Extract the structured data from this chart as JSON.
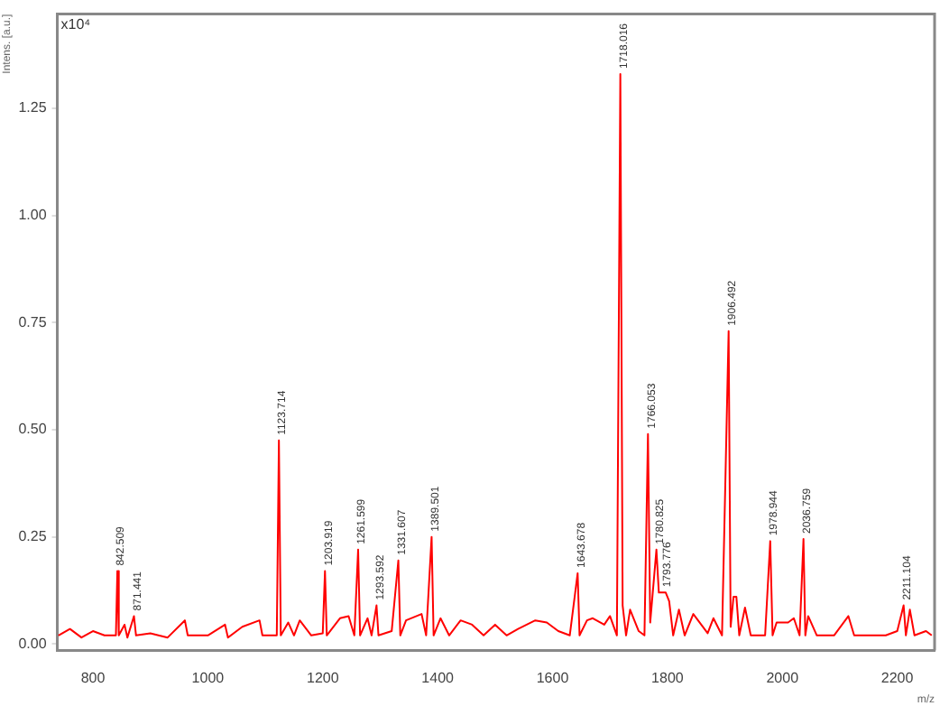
{
  "chart_data": {
    "type": "line",
    "xlabel": "m/z",
    "ylabel": "Intens. [a.u.]",
    "x": [
      740,
      760,
      780,
      800,
      820,
      840,
      842.5,
      845,
      855,
      860,
      871.4,
      875,
      900,
      930,
      960,
      965,
      1000,
      1030,
      1035,
      1060,
      1090,
      1095,
      1120,
      1123.7,
      1127,
      1140,
      1150,
      1160,
      1180,
      1200,
      1203.9,
      1207,
      1230,
      1245,
      1255,
      1261.6,
      1265,
      1278,
      1285,
      1293.6,
      1297,
      1320,
      1331.6,
      1335,
      1345,
      1372,
      1380,
      1389.5,
      1393,
      1405,
      1420,
      1440,
      1460,
      1480,
      1500,
      1520,
      1540,
      1570,
      1590,
      1610,
      1630,
      1643.7,
      1647,
      1660,
      1670,
      1690,
      1700,
      1712,
      1718,
      1722,
      1728,
      1735,
      1750,
      1760,
      1766.1,
      1770,
      1780.8,
      1785,
      1793.8,
      1797,
      1803,
      1810,
      1820,
      1830,
      1845,
      1870,
      1880,
      1895,
      1906.5,
      1910,
      1915,
      1920,
      1925,
      1935,
      1945,
      1970,
      1978.9,
      1983,
      1990,
      2010,
      2020,
      2030,
      2036.8,
      2040,
      2045,
      2060,
      2090,
      2115,
      2125,
      2180,
      2200,
      2211.1,
      2215,
      2222,
      2230,
      2250,
      2260
    ],
    "series": [
      {
        "color": "#ff0000",
        "values": [
          0.02,
          0.035,
          0.015,
          0.03,
          0.02,
          0.02,
          0.17,
          0.02,
          0.045,
          0.015,
          0.065,
          0.02,
          0.025,
          0.015,
          0.055,
          0.02,
          0.02,
          0.045,
          0.015,
          0.04,
          0.055,
          0.02,
          0.02,
          0.475,
          0.02,
          0.05,
          0.02,
          0.055,
          0.02,
          0.025,
          0.17,
          0.02,
          0.06,
          0.065,
          0.02,
          0.22,
          0.02,
          0.06,
          0.02,
          0.09,
          0.02,
          0.03,
          0.195,
          0.02,
          0.055,
          0.07,
          0.02,
          0.25,
          0.02,
          0.06,
          0.02,
          0.055,
          0.045,
          0.02,
          0.045,
          0.02,
          0.035,
          0.055,
          0.05,
          0.03,
          0.02,
          0.165,
          0.02,
          0.055,
          0.06,
          0.045,
          0.065,
          0.02,
          1.33,
          0.09,
          0.02,
          0.08,
          0.03,
          0.02,
          0.49,
          0.05,
          0.22,
          0.12,
          0.12,
          0.12,
          0.1,
          0.02,
          0.08,
          0.02,
          0.07,
          0.025,
          0.06,
          0.02,
          0.73,
          0.04,
          0.11,
          0.11,
          0.02,
          0.085,
          0.02,
          0.02,
          0.24,
          0.02,
          0.05,
          0.05,
          0.06,
          0.02,
          0.245,
          0.02,
          0.065,
          0.02,
          0.02,
          0.065,
          0.02,
          0.02,
          0.03,
          0.09,
          0.02,
          0.08,
          0.02,
          0.03,
          0.02
        ]
      }
    ],
    "xlim": [
      738,
      2265
    ],
    "xticks": [
      800,
      1000,
      1200,
      1400,
      1600,
      1800,
      2000,
      2200
    ],
    "ylim": [
      -0.015,
      1.47
    ],
    "yticks": [
      {
        "value": 0,
        "label": "0.00"
      },
      {
        "value": 0.25,
        "label": "0.25"
      },
      {
        "value": 0.5,
        "label": "0.50"
      },
      {
        "value": 0.75,
        "label": "0.75"
      },
      {
        "value": 1,
        "label": "1.00"
      },
      {
        "value": 1.25,
        "label": "1.25"
      }
    ],
    "grid": false,
    "legend": false,
    "marker": "none",
    "line_style": "solid",
    "annotations": [
      "x10⁴",
      {
        "text": "842.509",
        "x": 842.5,
        "y": 0.17
      },
      {
        "text": "871.441",
        "x": 871.4,
        "y": 0.065
      },
      {
        "text": "1123.714",
        "x": 1123.7,
        "y": 0.475
      },
      {
        "text": "1203.919",
        "x": 1203.9,
        "y": 0.17
      },
      {
        "text": "1261.599",
        "x": 1261.6,
        "y": 0.22
      },
      {
        "text": "1293.592",
        "x": 1293.6,
        "y": 0.09
      },
      {
        "text": "1331.607",
        "x": 1331.6,
        "y": 0.195
      },
      {
        "text": "1389.501",
        "x": 1389.5,
        "y": 0.25
      },
      {
        "text": "1643.678",
        "x": 1643.7,
        "y": 0.165
      },
      {
        "text": "1718.016",
        "x": 1718,
        "y": 1.33
      },
      {
        "text": "1766.053",
        "x": 1766.1,
        "y": 0.49
      },
      {
        "text": "1780.825",
        "x": 1780.8,
        "y": 0.22
      },
      {
        "text": "1793.776",
        "x": 1793.8,
        "y": 0.12
      },
      {
        "text": "1906.492",
        "x": 1906.5,
        "y": 0.73
      },
      {
        "text": "1978.944",
        "x": 1978.9,
        "y": 0.24
      },
      {
        "text": "2036.759",
        "x": 2036.8,
        "y": 0.245
      },
      {
        "text": "2211.104",
        "x": 2211.1,
        "y": 0.09
      }
    ]
  }
}
